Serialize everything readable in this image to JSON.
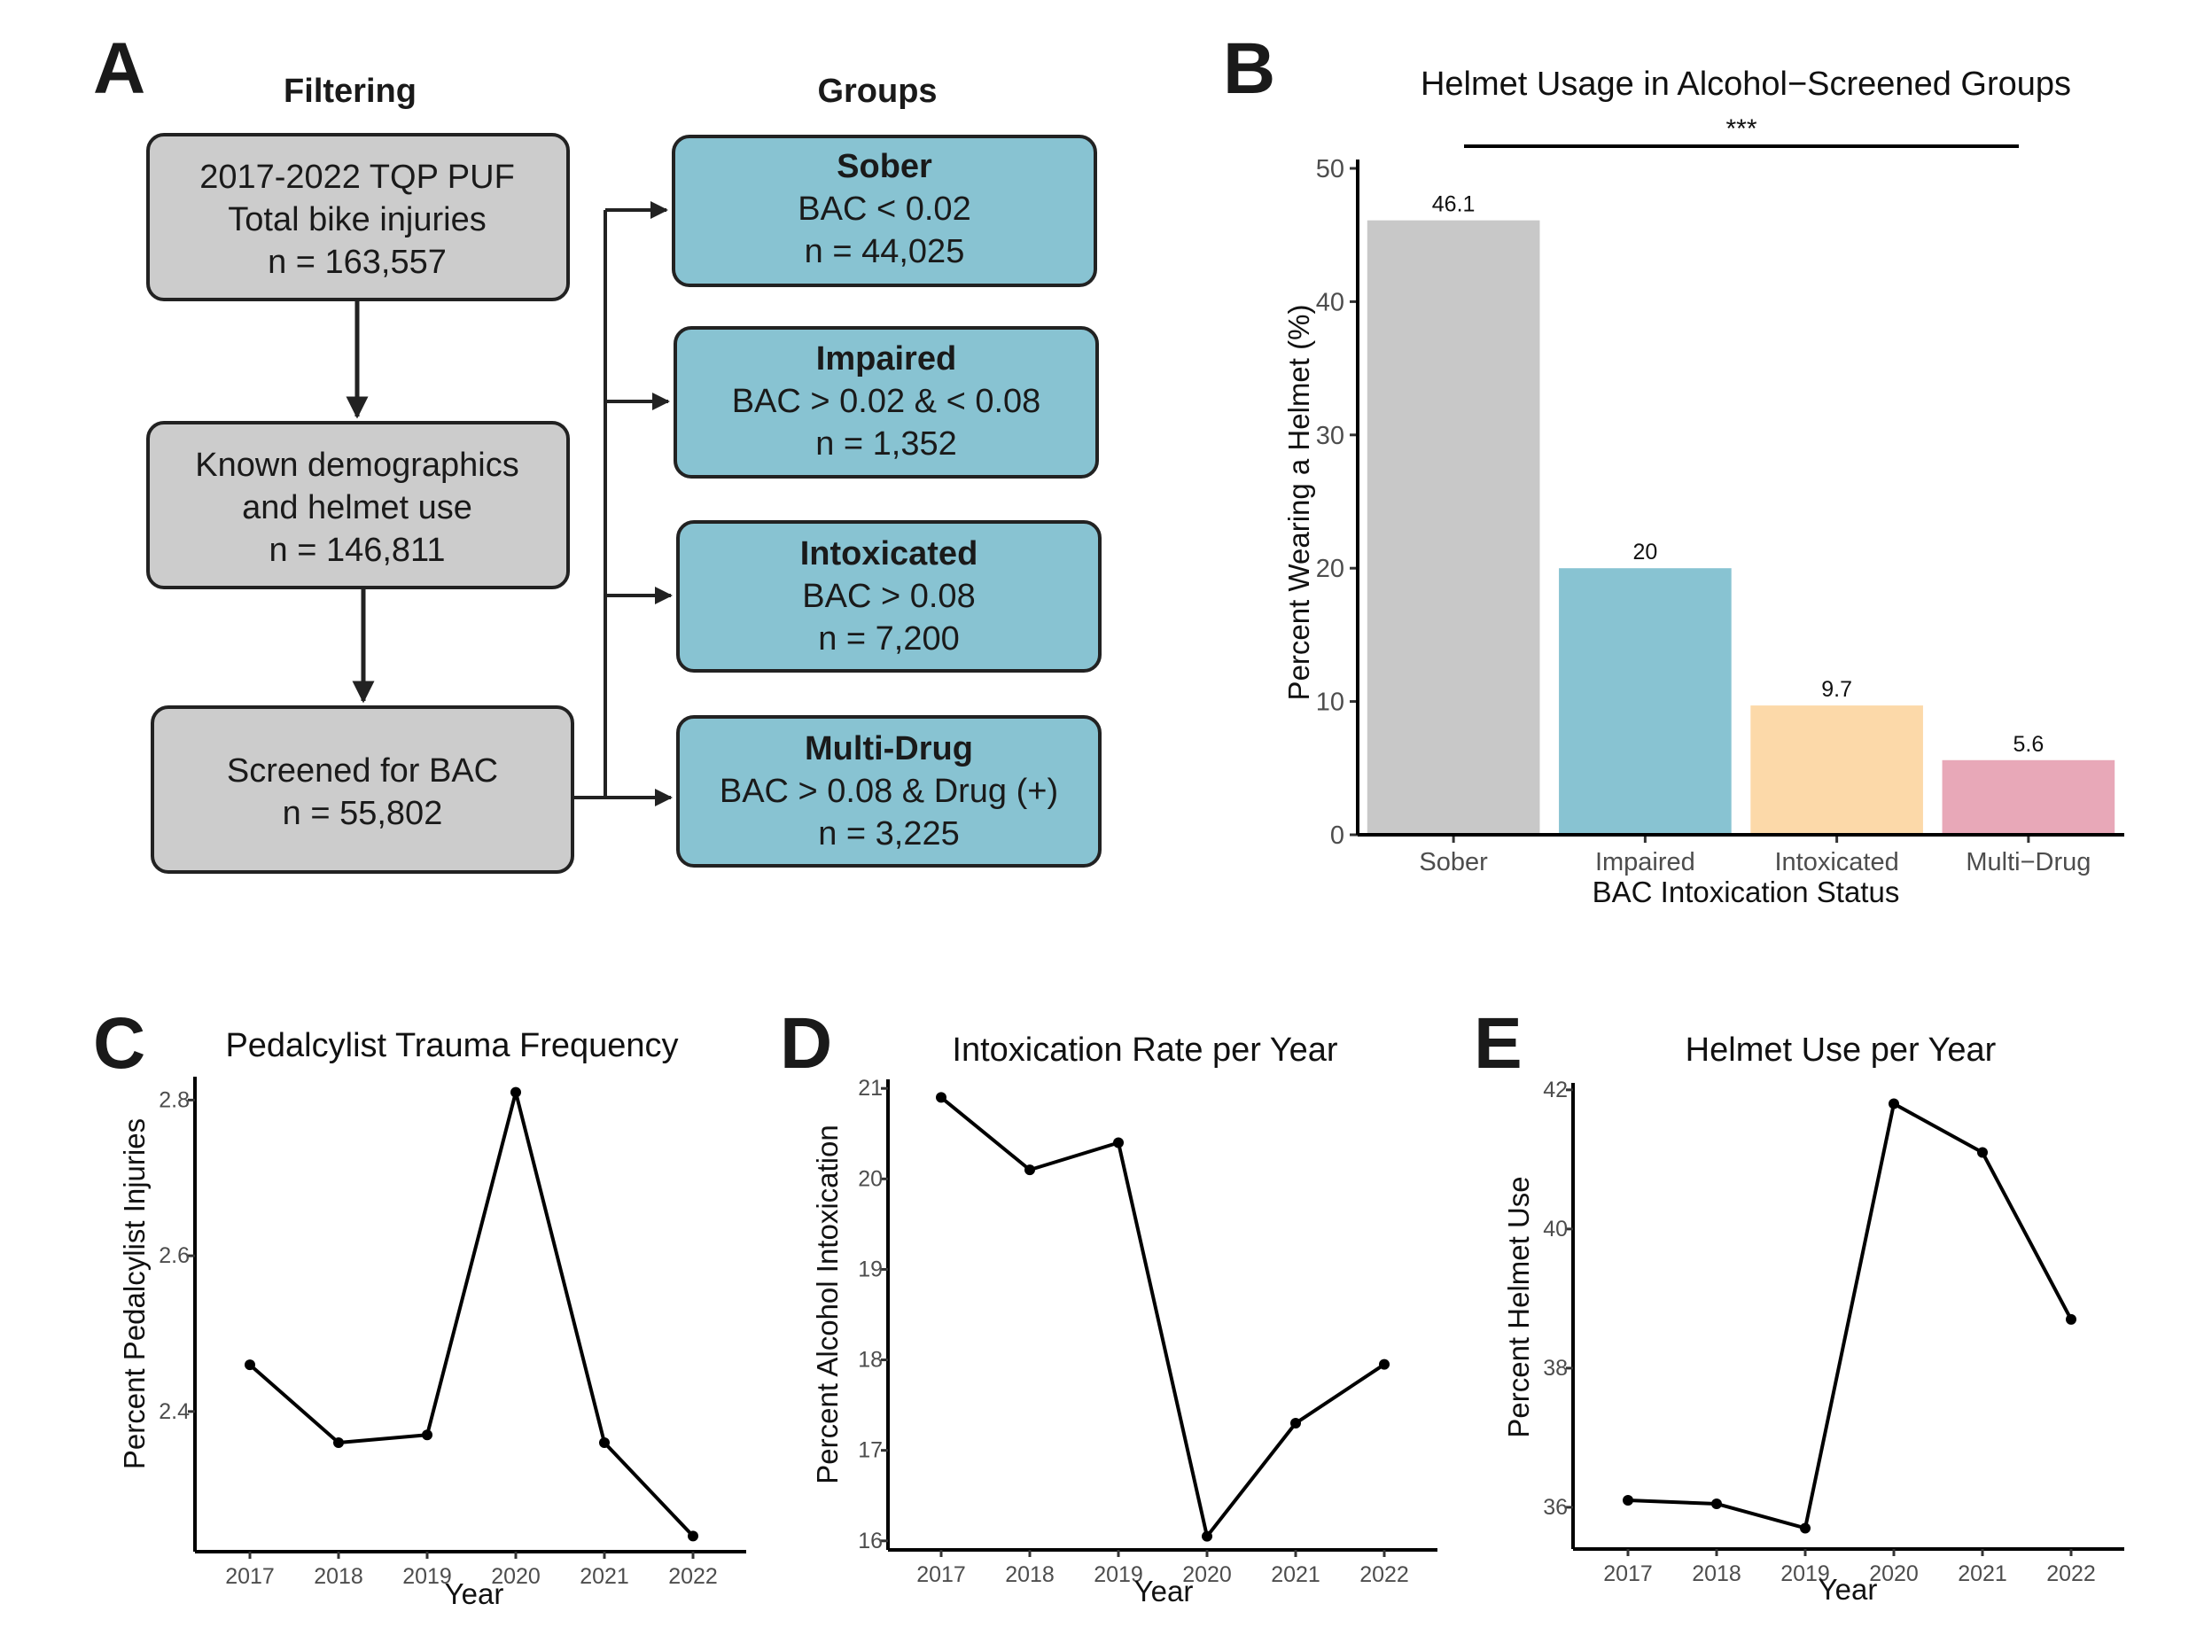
{
  "panel_a": {
    "letter": "A",
    "filtering_header": "Filtering",
    "groups_header": "Groups",
    "filter_boxes": [
      {
        "lines": [
          "2017-2022 TQP PUF",
          "Total bike injuries",
          "n = 163,557"
        ]
      },
      {
        "lines": [
          "Known demographics",
          "and helmet use",
          "n = 146,811"
        ]
      },
      {
        "lines": [
          "Screened for BAC",
          "n = 55,802"
        ]
      }
    ],
    "group_boxes": [
      {
        "title": "Sober",
        "criteria": "BAC < 0.02",
        "n": "n = 44,025"
      },
      {
        "title": "Impaired",
        "criteria": "BAC > 0.02 & < 0.08",
        "n": "n = 1,352"
      },
      {
        "title": "Intoxicated",
        "criteria": "BAC > 0.08",
        "n": "n = 7,200"
      },
      {
        "title": "Multi-Drug",
        "criteria": "BAC > 0.08 & Drug (+)",
        "n": "n = 3,225"
      }
    ],
    "colors": {
      "filter_fill": "#cccccc",
      "group_fill": "#88c3d2",
      "border": "#222222"
    }
  },
  "chart_data": [
    {
      "panel": "B",
      "type": "bar",
      "title": "Helmet Usage in Alcohol−Screened Groups",
      "xlabel": "BAC Intoxication Status",
      "ylabel": "Percent Wearing a Helmet (%)",
      "categories": [
        "Sober",
        "Impaired",
        "Intoxicated",
        "Multi−Drug"
      ],
      "values": [
        46.1,
        20,
        9.7,
        5.6
      ],
      "data_labels": [
        "46.1",
        "20",
        "9.7",
        "5.6"
      ],
      "colors": [
        "#c8c8c8",
        "#88c3d2",
        "#fcd9a9",
        "#e8a8b8"
      ],
      "ylim": [
        0,
        50
      ],
      "yticks": [
        0,
        10,
        20,
        30,
        40,
        50
      ],
      "significance": "***",
      "grid": false
    },
    {
      "panel": "C",
      "type": "line",
      "title": "Pedalcylist Trauma Frequency",
      "xlabel": "Year",
      "ylabel": "Percent Pedalcylist Injuries",
      "x": [
        "2017",
        "2018",
        "2019",
        "2020",
        "2021",
        "2022"
      ],
      "y": [
        2.46,
        2.36,
        2.37,
        2.81,
        2.36,
        2.24
      ],
      "yticks": [
        2.4,
        2.6,
        2.8
      ],
      "ylim": [
        2.22,
        2.83
      ],
      "grid": false
    },
    {
      "panel": "D",
      "type": "line",
      "title": "Intoxication Rate per Year",
      "xlabel": "Year",
      "ylabel": "Percent Alcohol Intoxication",
      "x": [
        "2017",
        "2018",
        "2019",
        "2020",
        "2021",
        "2022"
      ],
      "y": [
        20.9,
        20.1,
        20.4,
        16.05,
        17.3,
        17.95
      ],
      "yticks": [
        16,
        17,
        18,
        19,
        20,
        21
      ],
      "ylim": [
        15.9,
        21.1
      ],
      "grid": false
    },
    {
      "panel": "E",
      "type": "line",
      "title": "Helmet Use per Year",
      "xlabel": "Year",
      "ylabel": "Percent Helmet Use",
      "x": [
        "2017",
        "2018",
        "2019",
        "2020",
        "2021",
        "2022"
      ],
      "y": [
        36.1,
        36.05,
        35.7,
        41.8,
        41.1,
        38.7
      ],
      "yticks": [
        36,
        38,
        40,
        42
      ],
      "ylim": [
        35.4,
        42.1
      ],
      "grid": false
    }
  ]
}
